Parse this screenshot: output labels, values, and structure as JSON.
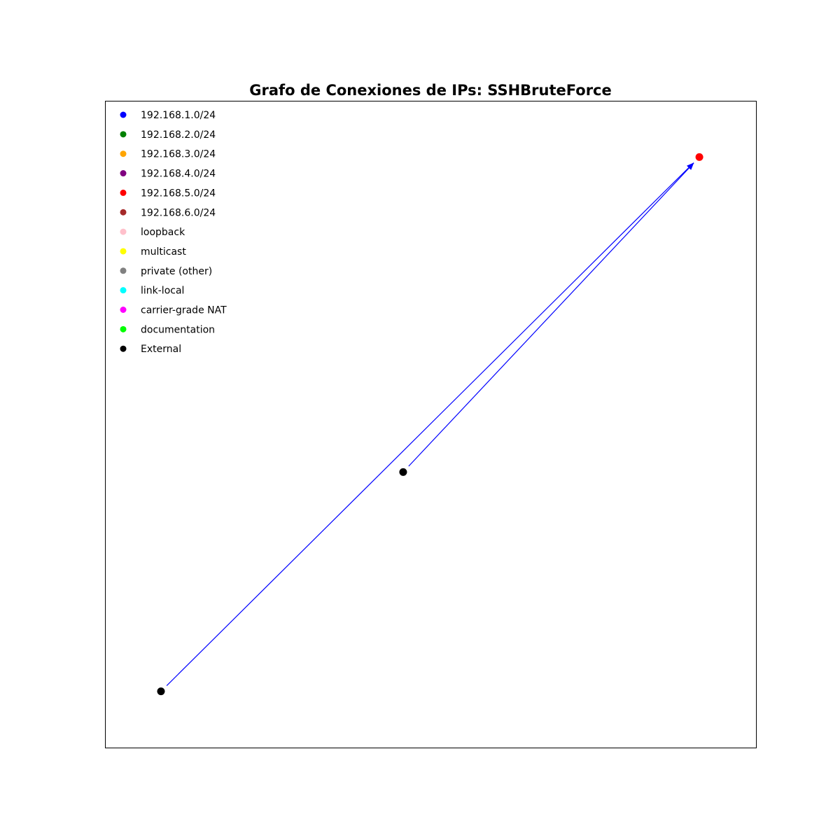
{
  "chart_data": {
    "type": "network-graph",
    "title": "Grafo de Conexiones de IPs: SSHBruteForce",
    "xlim": [
      0,
      1
    ],
    "ylim": [
      0,
      1
    ],
    "legend": {
      "placement": "top-left",
      "entries": [
        {
          "label": "192.168.1.0/24",
          "color": "#0000ff"
        },
        {
          "label": "192.168.2.0/24",
          "color": "#008000"
        },
        {
          "label": "192.168.3.0/24",
          "color": "#ffa500"
        },
        {
          "label": "192.168.4.0/24",
          "color": "#800080"
        },
        {
          "label": "192.168.5.0/24",
          "color": "#ff0000"
        },
        {
          "label": "192.168.6.0/24",
          "color": "#a52a2a"
        },
        {
          "label": "loopback",
          "color": "#ffc0cb"
        },
        {
          "label": "multicast",
          "color": "#ffff00"
        },
        {
          "label": "private (other)",
          "color": "#808080"
        },
        {
          "label": "link-local",
          "color": "#00ffff"
        },
        {
          "label": "carrier-grade NAT",
          "color": "#ff00ff"
        },
        {
          "label": "documentation",
          "color": "#00ff00"
        },
        {
          "label": "External",
          "color": "#000000"
        }
      ]
    },
    "nodes": [
      {
        "id": "n1",
        "category": "192.168.5.0/24",
        "color": "#ff0000",
        "x": 0.913,
        "y": 0.913
      },
      {
        "id": "n2",
        "category": "External",
        "color": "#000000",
        "x": 0.458,
        "y": 0.426
      },
      {
        "id": "n3",
        "category": "External",
        "color": "#000000",
        "x": 0.086,
        "y": 0.087
      }
    ],
    "edges": [
      {
        "source": "n3",
        "target": "n1",
        "color": "#0000ff",
        "directed": true
      },
      {
        "source": "n2",
        "target": "n1",
        "color": "#0000ff",
        "directed": true
      }
    ]
  }
}
